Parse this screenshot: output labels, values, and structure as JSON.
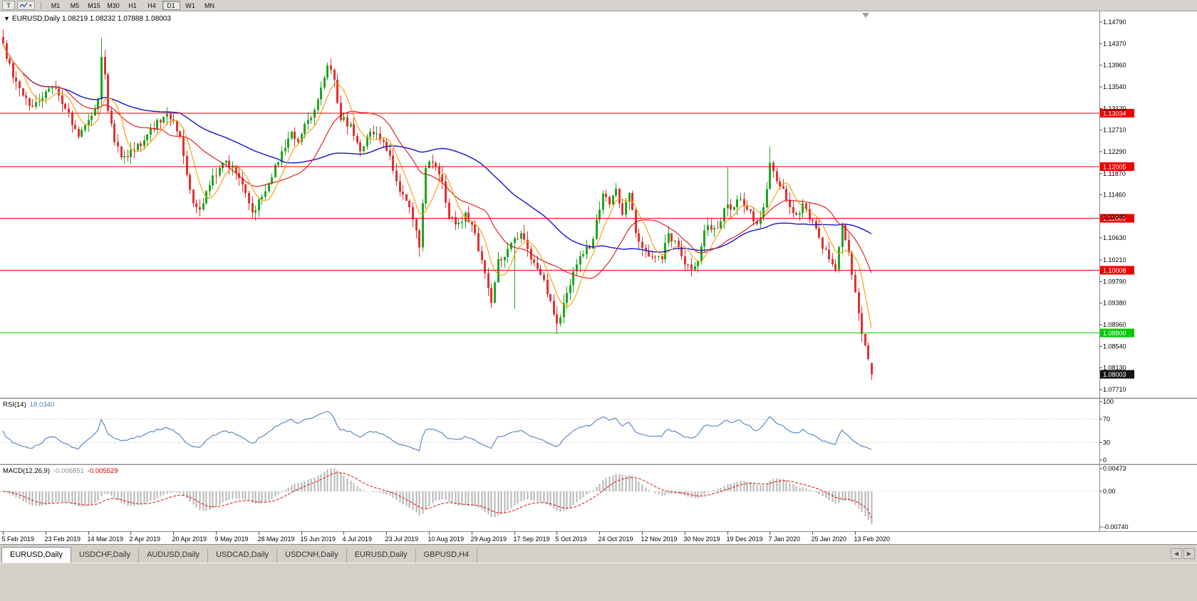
{
  "toolbar": {
    "chart_type_button": "T",
    "dropdown_caret": "▾",
    "timeframes": [
      "M1",
      "M5",
      "M15",
      "M30",
      "H1",
      "H4",
      "D1",
      "W1",
      "MN"
    ],
    "active_timeframe": "D1"
  },
  "chart": {
    "collapse_arrow": "▼",
    "title": "EURUSD,Daily 1.08219 1.08232 1.07888 1.08003",
    "ohlc": {
      "open": "1.08219",
      "high": "1.08232",
      "low": "1.07888",
      "close": "1.08003"
    },
    "price_axis_labels": [
      "1.14790",
      "1.14370",
      "1.13960",
      "1.13540",
      "1.13120",
      "1.12710",
      "1.12290",
      "1.11870",
      "1.11460",
      "1.11040",
      "1.10630",
      "1.10210",
      "1.09790",
      "1.09380",
      "1.08960",
      "1.08540",
      "1.08130",
      "1.07710"
    ],
    "date_axis_labels": [
      "5 Feb 2019",
      "23 Feb 2019",
      "14 Mar 2019",
      "2 Apr 2019",
      "20 Apr 2019",
      "9 May 2019",
      "28 May 2019",
      "15 Jun 2019",
      "4 Jul 2019",
      "23 Jul 2019",
      "10 Aug 2019",
      "29 Aug 2019",
      "17 Sep 2019",
      "5 Oct 2019",
      "24 Oct 2019",
      "12 Nov 2019",
      "30 Nov 2019",
      "19 Dec 2019",
      "7 Jan 2020",
      "25 Jan 2020",
      "13 Feb 2020"
    ],
    "levels": [
      {
        "price": 1.13034,
        "label": "1.13034",
        "type": "resistance",
        "color": "#ee0000"
      },
      {
        "price": 1.12005,
        "label": "1.12005",
        "type": "resistance",
        "color": "#ee0000"
      },
      {
        "price": 1.11009,
        "label": "1.11009",
        "type": "resistance",
        "color": "#ee0000"
      },
      {
        "price": 1.10008,
        "label": "1.10008",
        "type": "resistance",
        "color": "#ee0000"
      },
      {
        "price": 1.088,
        "label": "1.08800",
        "type": "support",
        "color": "#00cc00"
      }
    ],
    "current_price": {
      "value": 1.08003,
      "label": "1.08003"
    }
  },
  "rsi_panel": {
    "name": "RSI(14)",
    "value": "18.0340",
    "period": 14,
    "axis_labels": [
      "100",
      "70",
      "30",
      "0"
    ],
    "level_lines": [
      70,
      30
    ]
  },
  "macd_panel": {
    "name": "MACD(12,26,9)",
    "value_main": "-0.006851",
    "value_signal": "-0.005529",
    "fast": 12,
    "slow": 26,
    "signal": 9,
    "axis_labels": [
      "0.00473",
      "0.00",
      "-0.00740"
    ]
  },
  "tabs": [
    {
      "label": "EURUSD,Daily",
      "active": true
    },
    {
      "label": "USDCHF,Daily",
      "active": false
    },
    {
      "label": "AUDUSD,Daily",
      "active": false
    },
    {
      "label": "USDCAD,Daily",
      "active": false
    },
    {
      "label": "USDCNH,Daily",
      "active": false
    },
    {
      "label": "EURUSD,Daily",
      "active": false
    },
    {
      "label": "GBPUSD,H4",
      "active": false
    }
  ],
  "tab_scroll": {
    "left": "◀",
    "right": "▶"
  },
  "colors": {
    "bull": "#1fa51f",
    "bear": "#e03232",
    "ma_fast": "#ff9900",
    "ma_mid": "#dd1111",
    "ma_slow": "#1414cc",
    "rsi_line": "#4f81bd",
    "macd_hist": "#b6b6b6",
    "macd_signal": "#dd1111",
    "support_green": "#00cc00",
    "resistance_red": "#ee0000",
    "price_tag_bg": "#151515",
    "chart_bg": "#ffffff",
    "chrome": "#d4d0c8"
  },
  "chart_data": {
    "type": "candlestick",
    "symbol": "EURUSD",
    "timeframe": "Daily",
    "visible_range": {
      "first_date": "5 Feb 2019",
      "last_date": "13 Feb 2020",
      "price_min": 1.0771,
      "price_max": 1.1479
    },
    "candle_count": 266,
    "close_anchors": [
      [
        0,
        1.1438
      ],
      [
        3,
        1.1372
      ],
      [
        6,
        1.1338
      ],
      [
        9,
        1.1316
      ],
      [
        12,
        1.1332
      ],
      [
        15,
        1.1352
      ],
      [
        17,
        1.1338
      ],
      [
        20,
        1.1305
      ],
      [
        23,
        1.1258
      ],
      [
        26,
        1.129
      ],
      [
        29,
        1.133
      ],
      [
        30,
        1.1412
      ],
      [
        31,
        1.1378
      ],
      [
        32,
        1.1308
      ],
      [
        34,
        1.1248
      ],
      [
        36,
        1.1218
      ],
      [
        40,
        1.1232
      ],
      [
        44,
        1.1262
      ],
      [
        47,
        1.129
      ],
      [
        50,
        1.1302
      ],
      [
        52,
        1.1288
      ],
      [
        54,
        1.1258
      ],
      [
        56,
        1.1185
      ],
      [
        58,
        1.113
      ],
      [
        60,
        1.1118
      ],
      [
        63,
        1.1165
      ],
      [
        66,
        1.1198
      ],
      [
        68,
        1.1212
      ],
      [
        71,
        1.1188
      ],
      [
        74,
        1.115
      ],
      [
        76,
        1.1112
      ],
      [
        79,
        1.1142
      ],
      [
        82,
        1.118
      ],
      [
        85,
        1.123
      ],
      [
        88,
        1.1268
      ],
      [
        90,
        1.1248
      ],
      [
        93,
        1.129
      ],
      [
        96,
        1.133
      ],
      [
        98,
        1.1372
      ],
      [
        99,
        1.1395
      ],
      [
        101,
        1.1368
      ],
      [
        103,
        1.129
      ],
      [
        106,
        1.1282
      ],
      [
        109,
        1.123
      ],
      [
        112,
        1.1268
      ],
      [
        115,
        1.1252
      ],
      [
        118,
        1.1222
      ],
      [
        121,
        1.1152
      ],
      [
        124,
        1.1122
      ],
      [
        126,
        1.1078
      ],
      [
        127,
        1.1045
      ],
      [
        128,
        1.113
      ],
      [
        129,
        1.1198
      ],
      [
        131,
        1.1208
      ],
      [
        134,
        1.1172
      ],
      [
        136,
        1.1102
      ],
      [
        139,
        1.1092
      ],
      [
        141,
        1.1112
      ],
      [
        144,
        1.1072
      ],
      [
        147,
        1.0995
      ],
      [
        149,
        1.0938
      ],
      [
        151,
        1.1022
      ],
      [
        154,
        1.1042
      ],
      [
        156,
        1.1062
      ],
      [
        158,
        1.1072
      ],
      [
        160,
        1.1042
      ],
      [
        162,
        1.1015
      ],
      [
        164,
        1.0992
      ],
      [
        167,
        1.0942
      ],
      [
        169,
        1.0898
      ],
      [
        171,
        1.0938
      ],
      [
        173,
        1.0972
      ],
      [
        176,
        1.1028
      ],
      [
        179,
        1.1042
      ],
      [
        181,
        1.1098
      ],
      [
        183,
        1.1148
      ],
      [
        185,
        1.1128
      ],
      [
        187,
        1.1158
      ],
      [
        189,
        1.1108
      ],
      [
        191,
        1.115
      ],
      [
        193,
        1.1072
      ],
      [
        196,
        1.1038
      ],
      [
        199,
        1.1026
      ],
      [
        201,
        1.1022
      ],
      [
        203,
        1.1072
      ],
      [
        205,
        1.1058
      ],
      [
        208,
        1.1012
      ],
      [
        210,
        1.1002
      ],
      [
        212,
        1.1018
      ],
      [
        214,
        1.1078
      ],
      [
        217,
        1.1082
      ],
      [
        219,
        1.1095
      ],
      [
        221,
        1.1128
      ],
      [
        223,
        1.1122
      ],
      [
        225,
        1.1138
      ],
      [
        227,
        1.1118
      ],
      [
        230,
        1.109
      ],
      [
        232,
        1.1122
      ],
      [
        234,
        1.1208
      ],
      [
        236,
        1.1172
      ],
      [
        238,
        1.1158
      ],
      [
        240,
        1.1122
      ],
      [
        242,
        1.1108
      ],
      [
        244,
        1.113
      ],
      [
        246,
        1.1098
      ],
      [
        248,
        1.1082
      ],
      [
        250,
        1.1042
      ],
      [
        252,
        1.1022
      ],
      [
        254,
        1.1002
      ],
      [
        256,
        1.1088
      ],
      [
        258,
        1.1035
      ],
      [
        259,
        1.0992
      ],
      [
        260,
        1.0958
      ],
      [
        261,
        1.0918
      ],
      [
        262,
        1.0878
      ],
      [
        263,
        1.0856
      ],
      [
        264,
        1.083
      ],
      [
        265,
        1.08
      ]
    ],
    "wick_overrides": [
      {
        "i": 30,
        "high": 1.1448
      },
      {
        "i": 127,
        "low": 1.1027
      },
      {
        "i": 156,
        "low": 1.0927
      },
      {
        "i": 169,
        "low": 1.0879
      },
      {
        "i": 221,
        "high": 1.1199
      },
      {
        "i": 234,
        "high": 1.1239
      }
    ],
    "last_candle": {
      "open": 1.08219,
      "high": 1.08232,
      "low": 1.07888,
      "close": 1.08003
    },
    "ma_periods": {
      "orange": 7,
      "red": 20,
      "blue": 55
    },
    "noise_amplitude": 0.0009,
    "wick_amplitude": 0.0016,
    "seed": 97,
    "horizontal_levels": [
      1.13034,
      1.12005,
      1.11009,
      1.10008,
      1.088
    ],
    "rsi_current": 18.034,
    "macd_current": {
      "macd": -0.006851,
      "signal": -0.005529
    }
  }
}
